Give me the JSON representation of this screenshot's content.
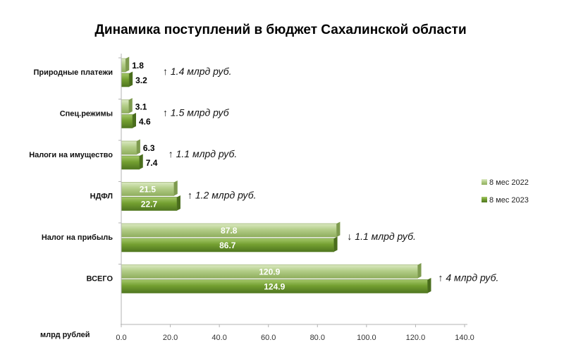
{
  "chart_data": {
    "type": "bar",
    "orientation": "horizontal",
    "title": "Динамика поступлений в бюджет Сахалинской области",
    "xlabel": "млрд рублей",
    "ylabel": "",
    "categories": [
      "Природные платежи",
      "Спец.режимы",
      "Налоги на имущество",
      "НДФЛ",
      "Налог на прибыль",
      "ВСЕГО"
    ],
    "series": [
      {
        "name": "8 мес 2022",
        "values": [
          1.8,
          3.1,
          6.3,
          21.5,
          87.8,
          120.9
        ],
        "labels": [
          "1.8",
          "3.1",
          "6.3",
          "21.5",
          "87.8",
          "120.9"
        ],
        "color": "#a9c47f"
      },
      {
        "name": "8 мес 2023",
        "values": [
          3.2,
          4.6,
          7.4,
          22.7,
          86.7,
          124.9
        ],
        "labels": [
          "3.2",
          "4.6",
          "7.4",
          "22.7",
          "86.7",
          "124.9"
        ],
        "color": "#6f9a2e"
      }
    ],
    "annotations": [
      {
        "arrow": "↑",
        "text": "1.4 млрд руб."
      },
      {
        "arrow": "↑",
        "text": "1.5 млрд руб"
      },
      {
        "arrow": "↑",
        "text": "1.1 млрд руб."
      },
      {
        "arrow": "↑",
        "text": "1.2 млрд руб."
      },
      {
        "arrow": "↓",
        "text": "1.1 млрд руб."
      },
      {
        "arrow": "↑",
        "text": "4 млрд руб."
      }
    ],
    "xlim": [
      0,
      140
    ],
    "ticks": [
      0,
      20,
      40,
      60,
      80,
      100,
      120,
      140
    ],
    "tick_labels": [
      "0.0",
      "20.0",
      "40.0",
      "60.0",
      "80.0",
      "100.0",
      "120.0",
      "140.0"
    ],
    "grid": false,
    "legend_position": "right"
  }
}
